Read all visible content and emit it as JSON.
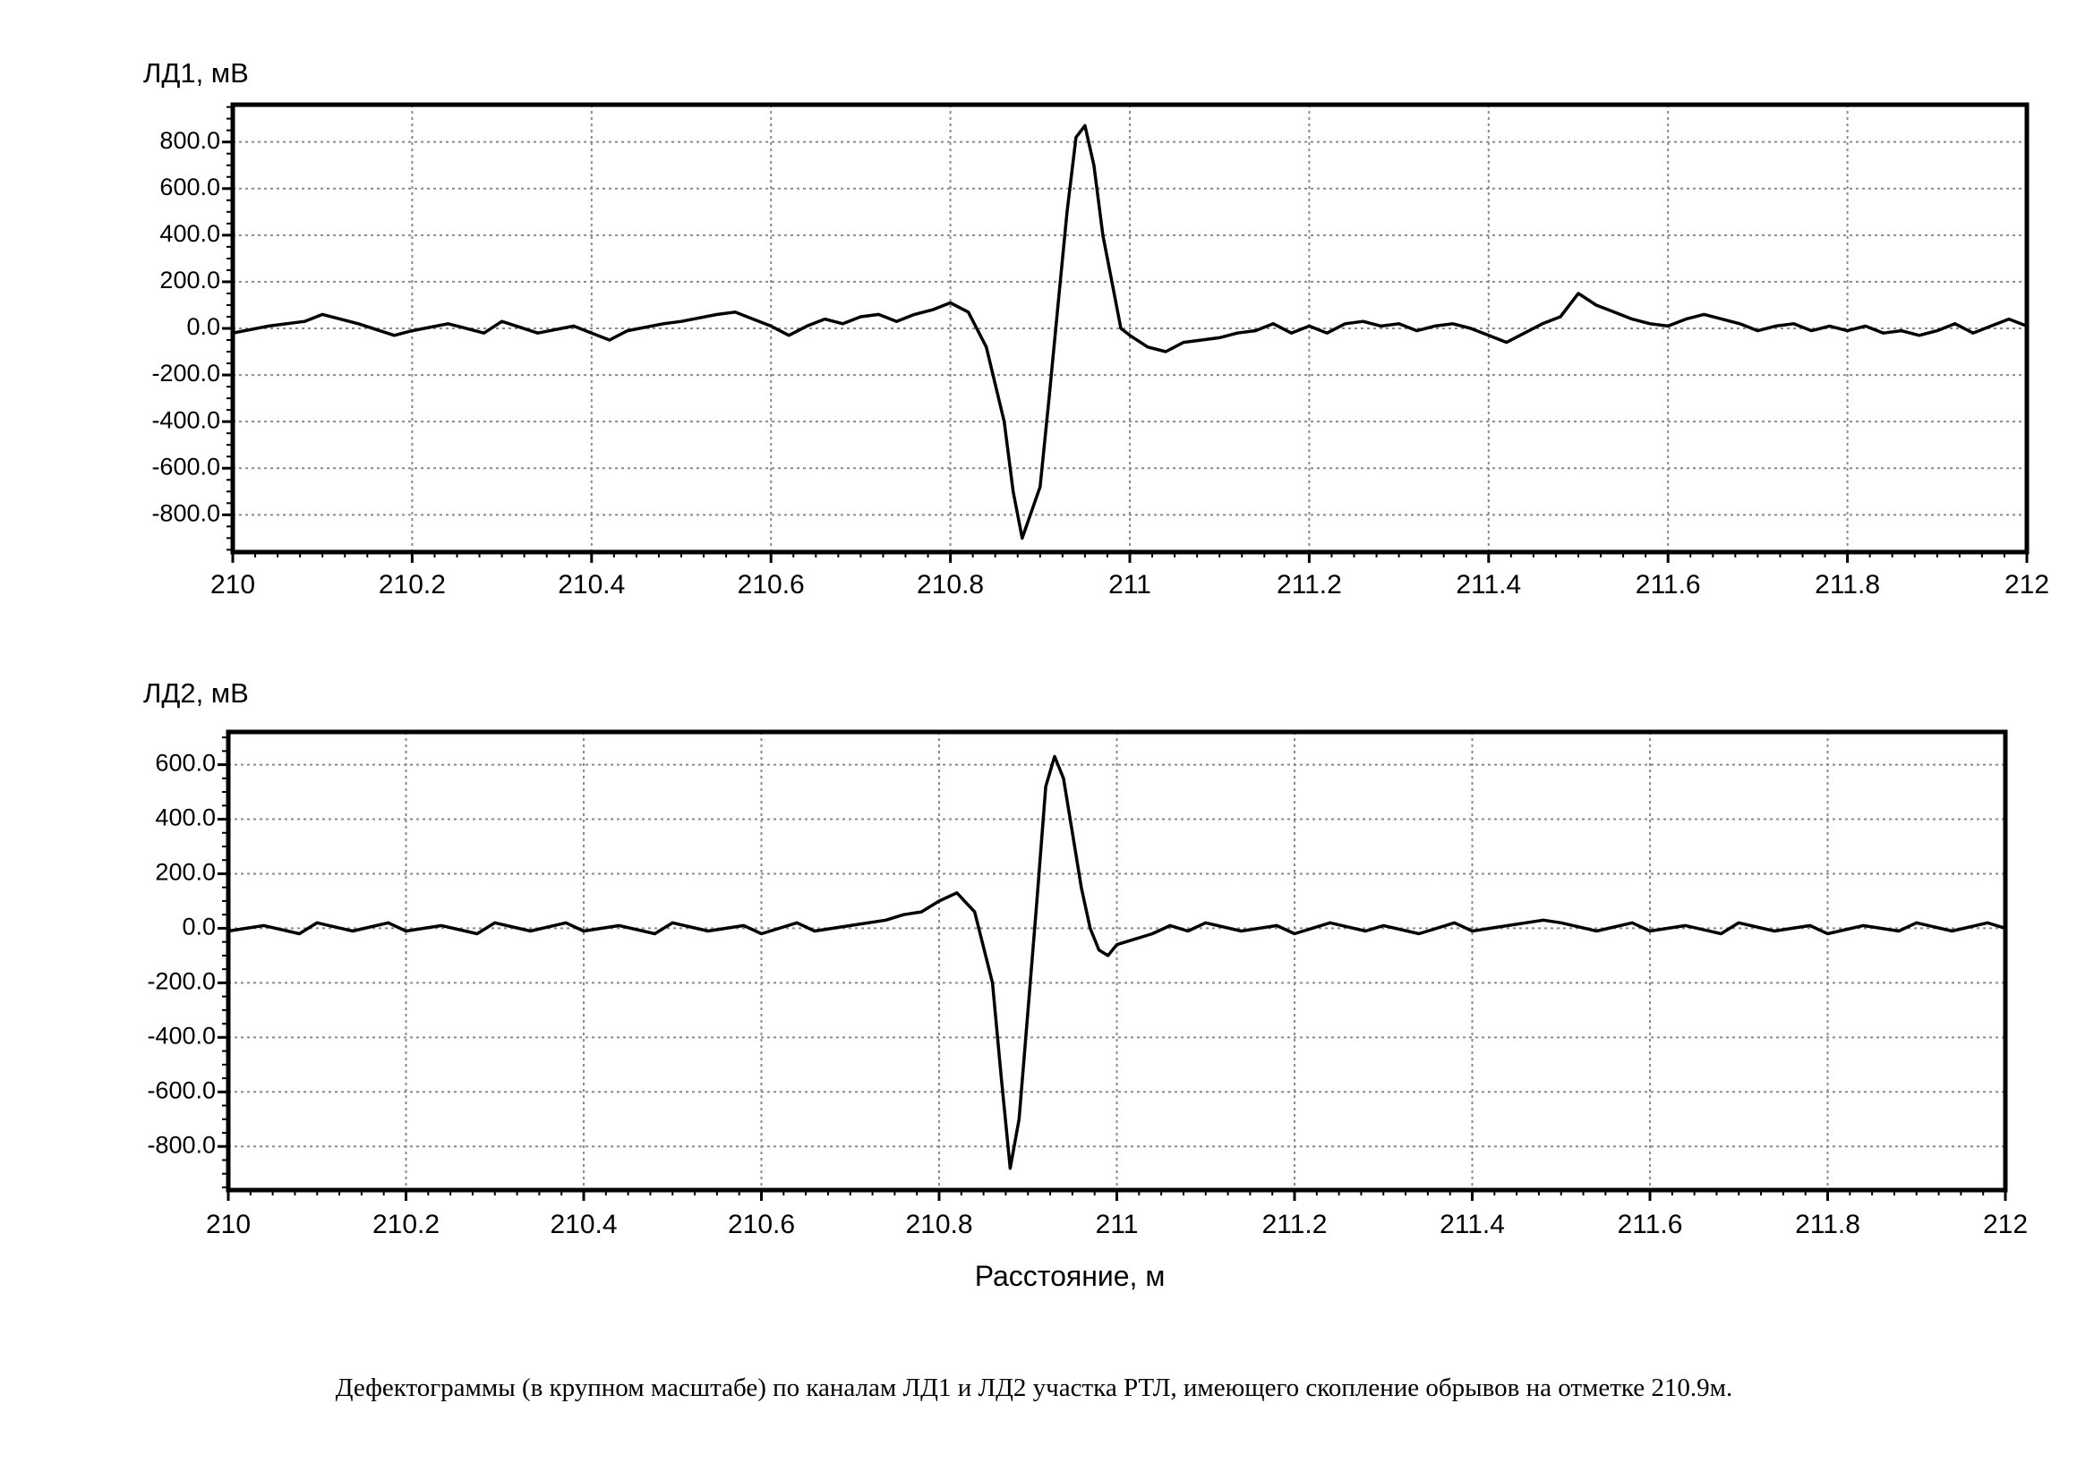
{
  "chart_data": [
    {
      "type": "line",
      "ylabel": "ЛД1, мВ",
      "xlim": [
        210,
        212
      ],
      "ylim": [
        -960,
        960
      ],
      "y_tick_values": [
        800,
        600,
        400,
        200,
        0,
        -200,
        -400,
        -600,
        -800
      ],
      "y_tick_labels": [
        "800.0",
        "600.0",
        "400.0",
        "200.0",
        "0.0",
        "-200.0",
        "-400.0",
        "-600.0",
        "-800.0"
      ],
      "x_tick_values": [
        210,
        210.2,
        210.4,
        210.6,
        210.8,
        211,
        211.2,
        211.4,
        211.6,
        211.8,
        212
      ],
      "x_tick_labels": [
        "210",
        "210.2",
        "210.4",
        "210.6",
        "210.8",
        "211",
        "211.2",
        "211.4",
        "211.6",
        "211.8",
        "212"
      ],
      "grid": true,
      "series": [
        {
          "color": "#000000",
          "points": [
            [
              210.0,
              -20
            ],
            [
              210.04,
              10
            ],
            [
              210.08,
              30
            ],
            [
              210.1,
              60
            ],
            [
              210.14,
              20
            ],
            [
              210.18,
              -30
            ],
            [
              210.2,
              -10
            ],
            [
              210.24,
              20
            ],
            [
              210.28,
              -20
            ],
            [
              210.3,
              30
            ],
            [
              210.34,
              -20
            ],
            [
              210.38,
              10
            ],
            [
              210.4,
              -20
            ],
            [
              210.42,
              -50
            ],
            [
              210.44,
              -10
            ],
            [
              210.48,
              20
            ],
            [
              210.5,
              30
            ],
            [
              210.54,
              60
            ],
            [
              210.56,
              70
            ],
            [
              210.58,
              40
            ],
            [
              210.6,
              10
            ],
            [
              210.62,
              -30
            ],
            [
              210.64,
              10
            ],
            [
              210.66,
              40
            ],
            [
              210.68,
              20
            ],
            [
              210.7,
              50
            ],
            [
              210.72,
              60
            ],
            [
              210.74,
              30
            ],
            [
              210.76,
              60
            ],
            [
              210.78,
              80
            ],
            [
              210.8,
              110
            ],
            [
              210.82,
              70
            ],
            [
              210.84,
              -80
            ],
            [
              210.86,
              -400
            ],
            [
              210.87,
              -700
            ],
            [
              210.88,
              -900
            ],
            [
              210.9,
              -680
            ],
            [
              210.91,
              -300
            ],
            [
              210.92,
              100
            ],
            [
              210.93,
              500
            ],
            [
              210.94,
              820
            ],
            [
              210.95,
              870
            ],
            [
              210.96,
              700
            ],
            [
              210.97,
              400
            ],
            [
              210.98,
              200
            ],
            [
              210.99,
              0
            ],
            [
              211.0,
              -30
            ],
            [
              211.02,
              -80
            ],
            [
              211.04,
              -100
            ],
            [
              211.06,
              -60
            ],
            [
              211.08,
              -50
            ],
            [
              211.1,
              -40
            ],
            [
              211.12,
              -20
            ],
            [
              211.14,
              -10
            ],
            [
              211.16,
              20
            ],
            [
              211.18,
              -20
            ],
            [
              211.2,
              10
            ],
            [
              211.22,
              -20
            ],
            [
              211.24,
              20
            ],
            [
              211.26,
              30
            ],
            [
              211.28,
              10
            ],
            [
              211.3,
              20
            ],
            [
              211.32,
              -10
            ],
            [
              211.34,
              10
            ],
            [
              211.36,
              20
            ],
            [
              211.38,
              0
            ],
            [
              211.4,
              -30
            ],
            [
              211.42,
              -60
            ],
            [
              211.44,
              -20
            ],
            [
              211.46,
              20
            ],
            [
              211.48,
              50
            ],
            [
              211.5,
              150
            ],
            [
              211.52,
              100
            ],
            [
              211.54,
              70
            ],
            [
              211.56,
              40
            ],
            [
              211.58,
              20
            ],
            [
              211.6,
              10
            ],
            [
              211.62,
              40
            ],
            [
              211.64,
              60
            ],
            [
              211.66,
              40
            ],
            [
              211.68,
              20
            ],
            [
              211.7,
              -10
            ],
            [
              211.72,
              10
            ],
            [
              211.74,
              20
            ],
            [
              211.76,
              -10
            ],
            [
              211.78,
              10
            ],
            [
              211.8,
              -10
            ],
            [
              211.82,
              10
            ],
            [
              211.84,
              -20
            ],
            [
              211.86,
              -10
            ],
            [
              211.88,
              -30
            ],
            [
              211.9,
              -10
            ],
            [
              211.92,
              20
            ],
            [
              211.94,
              -20
            ],
            [
              211.96,
              10
            ],
            [
              211.98,
              40
            ],
            [
              212.0,
              10
            ]
          ]
        }
      ]
    },
    {
      "type": "line",
      "ylabel": "ЛД2, мВ",
      "xlim": [
        210,
        212
      ],
      "ylim": [
        -960,
        720
      ],
      "y_tick_values": [
        600,
        400,
        200,
        0,
        -200,
        -400,
        -600,
        -800
      ],
      "y_tick_labels": [
        "600.0",
        "400.0",
        "200.0",
        "0.0",
        "-200.0",
        "-400.0",
        "-600.0",
        "-800.0"
      ],
      "x_tick_values": [
        210,
        210.2,
        210.4,
        210.6,
        210.8,
        211,
        211.2,
        211.4,
        211.6,
        211.8,
        212
      ],
      "x_tick_labels": [
        "210",
        "210.2",
        "210.4",
        "210.6",
        "210.8",
        "211",
        "211.2",
        "211.4",
        "211.6",
        "211.8",
        "212"
      ],
      "xlabel": "Расстояние, м",
      "grid": true,
      "series": [
        {
          "color": "#000000",
          "points": [
            [
              210.0,
              -10
            ],
            [
              210.04,
              10
            ],
            [
              210.08,
              -20
            ],
            [
              210.1,
              20
            ],
            [
              210.14,
              -10
            ],
            [
              210.18,
              20
            ],
            [
              210.2,
              -10
            ],
            [
              210.24,
              10
            ],
            [
              210.28,
              -20
            ],
            [
              210.3,
              20
            ],
            [
              210.34,
              -10
            ],
            [
              210.38,
              20
            ],
            [
              210.4,
              -10
            ],
            [
              210.44,
              10
            ],
            [
              210.48,
              -20
            ],
            [
              210.5,
              20
            ],
            [
              210.54,
              -10
            ],
            [
              210.58,
              10
            ],
            [
              210.6,
              -20
            ],
            [
              210.64,
              20
            ],
            [
              210.66,
              -10
            ],
            [
              210.7,
              10
            ],
            [
              210.74,
              30
            ],
            [
              210.76,
              50
            ],
            [
              210.78,
              60
            ],
            [
              210.8,
              100
            ],
            [
              210.82,
              130
            ],
            [
              210.84,
              60
            ],
            [
              210.86,
              -200
            ],
            [
              210.87,
              -550
            ],
            [
              210.88,
              -880
            ],
            [
              210.89,
              -700
            ],
            [
              210.9,
              -300
            ],
            [
              210.91,
              100
            ],
            [
              210.92,
              520
            ],
            [
              210.93,
              630
            ],
            [
              210.94,
              550
            ],
            [
              210.95,
              350
            ],
            [
              210.96,
              150
            ],
            [
              210.97,
              0
            ],
            [
              210.98,
              -80
            ],
            [
              210.99,
              -100
            ],
            [
              211.0,
              -60
            ],
            [
              211.02,
              -40
            ],
            [
              211.04,
              -20
            ],
            [
              211.06,
              10
            ],
            [
              211.08,
              -10
            ],
            [
              211.1,
              20
            ],
            [
              211.14,
              -10
            ],
            [
              211.18,
              10
            ],
            [
              211.2,
              -20
            ],
            [
              211.24,
              20
            ],
            [
              211.28,
              -10
            ],
            [
              211.3,
              10
            ],
            [
              211.34,
              -20
            ],
            [
              211.38,
              20
            ],
            [
              211.4,
              -10
            ],
            [
              211.44,
              10
            ],
            [
              211.48,
              30
            ],
            [
              211.5,
              20
            ],
            [
              211.54,
              -10
            ],
            [
              211.58,
              20
            ],
            [
              211.6,
              -10
            ],
            [
              211.64,
              10
            ],
            [
              211.68,
              -20
            ],
            [
              211.7,
              20
            ],
            [
              211.74,
              -10
            ],
            [
              211.78,
              10
            ],
            [
              211.8,
              -20
            ],
            [
              211.84,
              10
            ],
            [
              211.88,
              -10
            ],
            [
              211.9,
              20
            ],
            [
              211.94,
              -10
            ],
            [
              211.98,
              20
            ],
            [
              212.0,
              0
            ]
          ]
        }
      ]
    }
  ],
  "caption": "Дефектограммы (в крупном масштабе) по каналам ЛД1 и ЛД2 участка РТЛ, имеющего скопление обрывов на отметке 210.9м."
}
